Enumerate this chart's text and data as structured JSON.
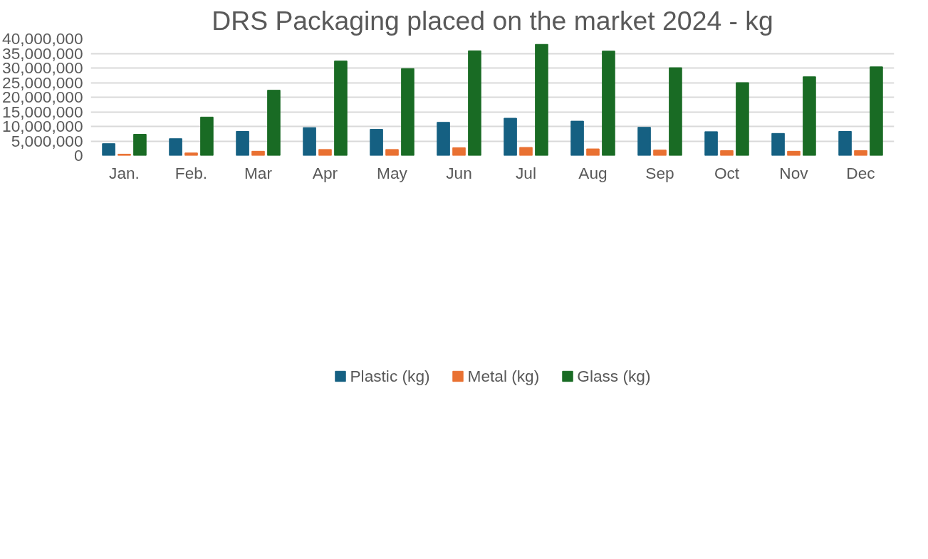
{
  "chart_data": {
    "type": "bar",
    "title": "DRS Packaging placed on the market 2024 - kg",
    "categories": [
      "Jan.",
      "Feb.",
      "Mar",
      "Apr",
      "May",
      "Jun",
      "Jul",
      "Aug",
      "Sep",
      "Oct",
      "Nov",
      "Dec"
    ],
    "series": [
      {
        "name": "Plastic (kg)",
        "color": "#156082",
        "values": [
          4100000,
          5800000,
          8300000,
          9600000,
          9000000,
          11400000,
          12800000,
          11800000,
          9700000,
          8200000,
          7600000,
          8300000
        ]
      },
      {
        "name": "Metal (kg)",
        "color": "#e97132",
        "values": [
          500000,
          900000,
          1500000,
          2100000,
          2100000,
          2700000,
          2800000,
          2300000,
          1900000,
          1700000,
          1500000,
          1700000
        ]
      },
      {
        "name": "Glass (kg)",
        "color": "#196b24",
        "values": [
          7300000,
          13200000,
          22400000,
          32400000,
          29800000,
          35900000,
          38100000,
          35800000,
          30100000,
          25000000,
          27000000,
          30400000
        ]
      }
    ],
    "ylim": [
      0,
      40000000
    ],
    "yticks": [
      {
        "value": 0,
        "label": "0"
      },
      {
        "value": 5000000,
        "label": "5,000,000"
      },
      {
        "value": 10000000,
        "label": "10,000,000"
      },
      {
        "value": 15000000,
        "label": "15,000,000"
      },
      {
        "value": 20000000,
        "label": "20,000,000"
      },
      {
        "value": 25000000,
        "label": "25,000,000"
      },
      {
        "value": 30000000,
        "label": "30,000,000"
      },
      {
        "value": 35000000,
        "label": "35,000,000"
      },
      {
        "value": 40000000,
        "label": "40,000,000"
      }
    ],
    "grid": "y",
    "legend": "bottom"
  }
}
